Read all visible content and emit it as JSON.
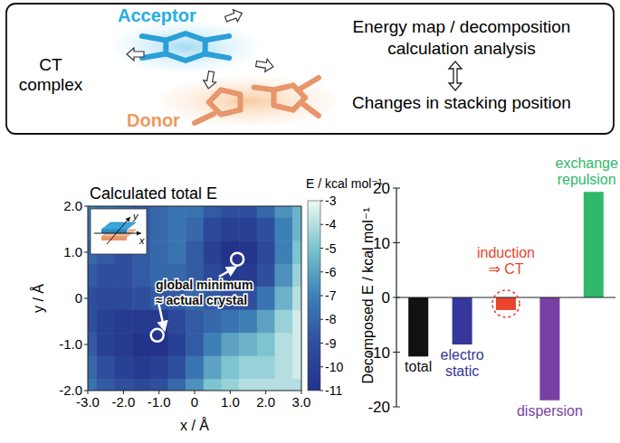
{
  "diagram": {
    "left_label": [
      "CT",
      "complex"
    ],
    "acceptor": "Acceptor",
    "donor": "Donor",
    "right_top": [
      "Energy map / decomposition",
      "calculation analysis"
    ],
    "right_bottom": "Changes in stacking position"
  },
  "chart_data": [
    {
      "type": "heatmap",
      "title": "Calculated total E",
      "xlabel": "x / Å",
      "ylabel": "y / Å",
      "xlim": [
        -3,
        3
      ],
      "ylim": [
        -2,
        2
      ],
      "xticks": [
        {
          "value": -3,
          "label": "-3.0"
        },
        {
          "value": -2,
          "label": "-2.0"
        },
        {
          "value": -1,
          "label": "-1.0"
        },
        {
          "value": 0,
          "label": "0"
        },
        {
          "value": 1,
          "label": "1.0"
        },
        {
          "value": 2,
          "label": "2.0"
        },
        {
          "value": 3,
          "label": "3.0"
        }
      ],
      "yticks": [
        {
          "value": -2,
          "label": "-2.0"
        },
        {
          "value": -1,
          "label": "-1.0"
        },
        {
          "value": 0,
          "label": "0"
        },
        {
          "value": 1,
          "label": "1.0"
        },
        {
          "value": 2,
          "label": "2.0"
        }
      ],
      "x": [
        -3,
        -2.5,
        -2,
        -1.5,
        -1,
        -0.5,
        0,
        0.5,
        1,
        1.5,
        2,
        2.5,
        3
      ],
      "y": [
        2,
        1.5,
        1,
        0.5,
        0,
        -0.5,
        -1,
        -1.5,
        -2
      ],
      "cells": [
        [
          -7,
          -7.5,
          -8,
          -8.5,
          -8,
          -7.5,
          -7.5,
          -8.5,
          -9,
          -9,
          -8,
          -6.5,
          -5.5
        ],
        [
          -7.5,
          -8,
          -8.5,
          -8.5,
          -8,
          -7.5,
          -8,
          -9.5,
          -10,
          -10,
          -9,
          -7,
          -5.5
        ],
        [
          -8,
          -8.5,
          -9,
          -8.5,
          -8,
          -7.5,
          -8.5,
          -10,
          -11,
          -10.8,
          -9.5,
          -7,
          -5
        ],
        [
          -8.5,
          -9,
          -9,
          -8.5,
          -8,
          -8,
          -8.5,
          -9.5,
          -10.5,
          -10.5,
          -9,
          -6.5,
          -4.5
        ],
        [
          -9,
          -9.5,
          -9.5,
          -9,
          -8.5,
          -8.5,
          -8,
          -8.5,
          -9,
          -9,
          -7.5,
          -5.5,
          -4
        ],
        [
          -9,
          -10,
          -10.5,
          -10.5,
          -10.5,
          -9.5,
          -8.5,
          -8,
          -7.5,
          -7,
          -6,
          -4.5,
          -3.5
        ],
        [
          -8.5,
          -10,
          -10.5,
          -11,
          -11,
          -10,
          -8.5,
          -7,
          -6,
          -5.5,
          -5,
          -4,
          -3.5
        ],
        [
          -8,
          -9,
          -10,
          -10.5,
          -10,
          -9,
          -7.5,
          -6,
          -5,
          -4.5,
          -4.5,
          -4,
          -3.5
        ],
        [
          -7.5,
          -8.5,
          -9,
          -9.5,
          -9,
          -8,
          -6.5,
          -5,
          -4.5,
          -4,
          -4,
          -4,
          -4
        ]
      ],
      "colorbar": {
        "label": "E / kcal mol⁻¹",
        "range": [
          -11,
          -3
        ],
        "ticks": [
          -3,
          -4,
          -5,
          -6,
          -7,
          -8,
          -9,
          -10,
          -11
        ]
      },
      "points": {
        "x": [
          -1.05,
          1.2
        ],
        "y": [
          -0.8,
          0.85
        ]
      },
      "annotation": [
        "global minimum",
        "≈ actual crystal"
      ],
      "inset_labels": [
        "x",
        "y"
      ]
    },
    {
      "type": "bar",
      "ylabel": "Decomposed E / kcal mol⁻¹",
      "categories": [
        "total",
        "electro\nstatic",
        "induction\n⇒ CT",
        "dispersion",
        "exchange\nrepulsion"
      ],
      "values": [
        -10.8,
        -8.6,
        -2.3,
        -18.8,
        19.3
      ],
      "colors": [
        "#111111",
        "#35379a",
        "#e8452c",
        "#7a3fa3",
        "#2fb86a"
      ],
      "ylim": [
        -20,
        20
      ],
      "yticks": [
        -20,
        -10,
        0,
        10,
        20
      ],
      "tick_labels": "y"
    }
  ]
}
